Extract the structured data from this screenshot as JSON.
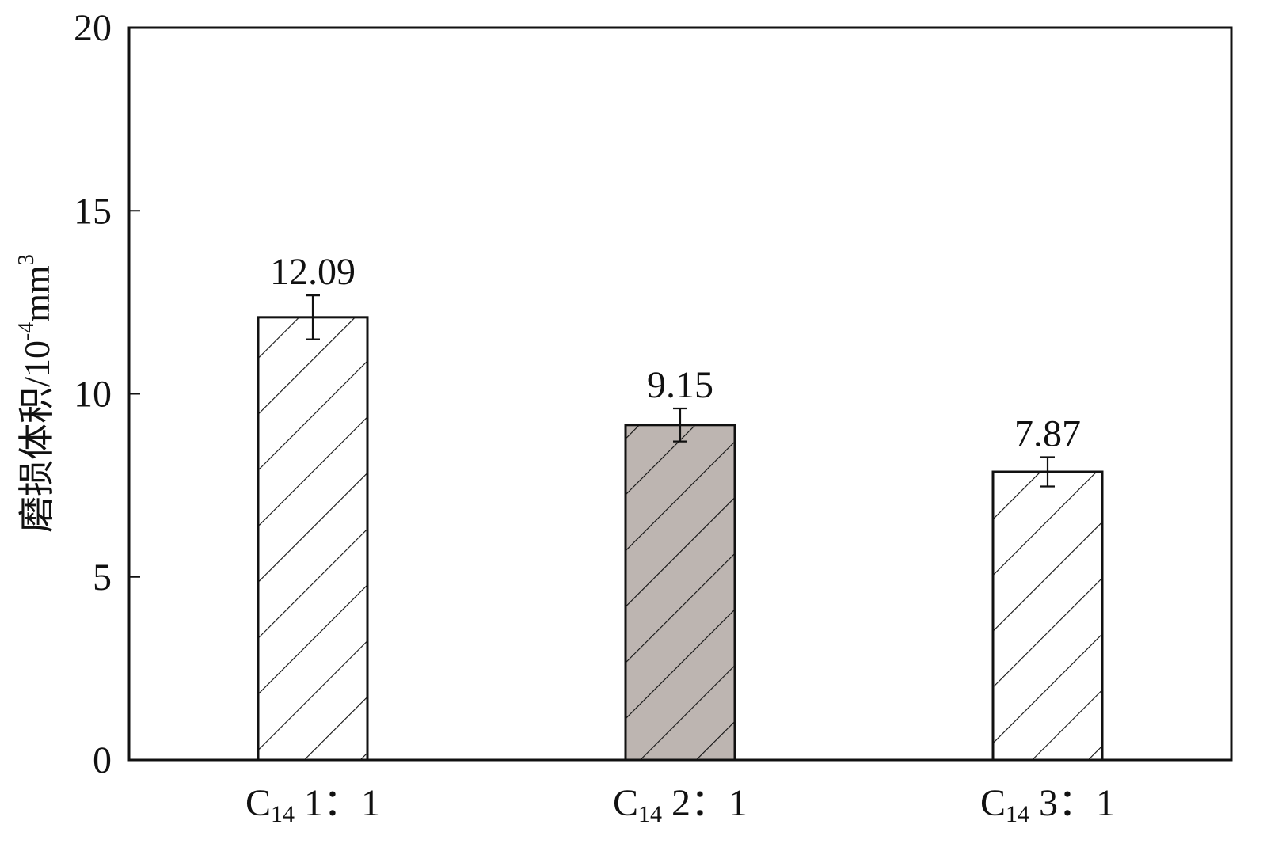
{
  "chart_data": {
    "type": "bar",
    "y_label": {
      "text": "磨损体积/10",
      "exponent": "-4",
      "unit": "mm",
      "unit_exponent": "3"
    },
    "categories": [
      {
        "symbol": "C",
        "subscript": "14",
        "ratio": "1：1"
      },
      {
        "symbol": "C",
        "subscript": "14",
        "ratio": "2：1"
      },
      {
        "symbol": "C",
        "subscript": "14",
        "ratio": "3：1"
      }
    ],
    "values": [
      12.09,
      9.15,
      7.87
    ],
    "errors": [
      0.6,
      0.45,
      0.4
    ],
    "colors": [
      "#ffffff",
      "#bdb5b1",
      "#ffffff"
    ],
    "hatch": true,
    "ylim": [
      0,
      20
    ],
    "yticks": [
      0,
      5,
      10,
      15,
      20
    ],
    "grid": false
  }
}
